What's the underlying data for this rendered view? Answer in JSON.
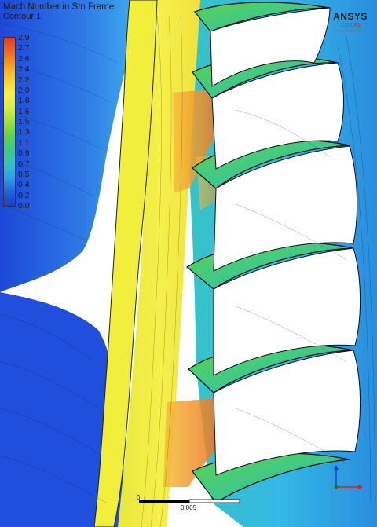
{
  "legend": {
    "title": "Mach Number in Stn Frame",
    "subtitle": "Contour 1",
    "ticks": [
      "2.9",
      "2.7",
      "2.6",
      "2.4",
      "2.2",
      "2.0",
      "1.8",
      "1.6",
      "1.5",
      "1.3",
      "1.1",
      "0.9",
      "0.7",
      "0.5",
      "0.4",
      "0.2",
      "0.0"
    ],
    "colors": [
      "#e03a1e",
      "#f06a1c",
      "#f7a020",
      "#fbd02a",
      "#f6f04a",
      "#d6ef3e",
      "#9fe13c",
      "#5fd34a",
      "#3ec98a",
      "#33c4c2",
      "#2e9fe8",
      "#2464d6",
      "#1b3ccf"
    ]
  },
  "logo": {
    "brand": "ANSYS",
    "version_prefix": "2020",
    "version_suffix": "R2",
    "edition": "ACADEMIC"
  },
  "scale_bar": {
    "start_label": "0",
    "end_label": "0.005"
  },
  "triad_colors": {
    "x": "#d62020",
    "y": "#1c7a1c",
    "z": "#1b3ccf"
  }
}
